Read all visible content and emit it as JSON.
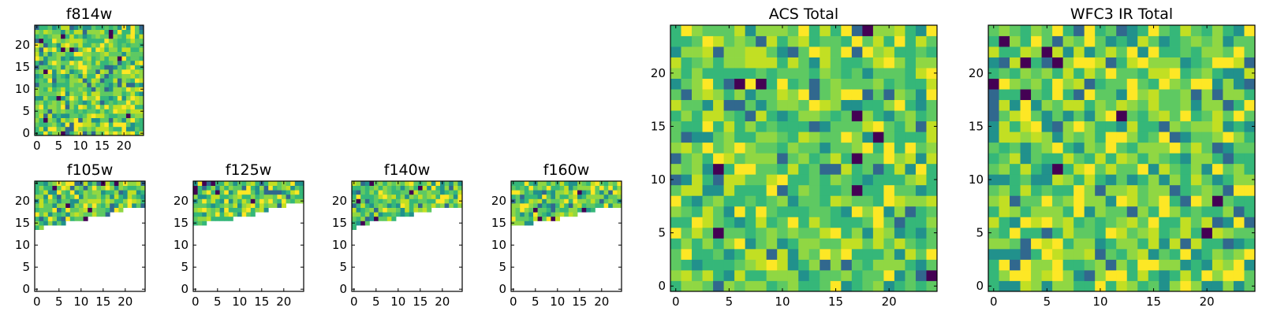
{
  "colors": {
    "colormap": "viridis",
    "cell_palette": [
      "#440154",
      "#31688e",
      "#21918c",
      "#35b779",
      "#5ec962",
      "#90d743",
      "#c2df23",
      "#fde725"
    ]
  },
  "chart_data": [
    {
      "type": "heatmap",
      "title": "f814w",
      "xlim": [
        -0.5,
        24.5
      ],
      "ylim": [
        -0.5,
        24.5
      ],
      "xticks": [
        0,
        5,
        10,
        15,
        20
      ],
      "yticks": [
        0,
        5,
        10,
        15,
        20
      ],
      "grid_size": [
        25,
        25
      ],
      "coverage_top_rows": 25,
      "seed": 11,
      "dark_count": 12
    },
    {
      "type": "heatmap",
      "title": "f105w",
      "xlim": [
        -0.5,
        24.5
      ],
      "ylim": [
        -0.5,
        24.5
      ],
      "xticks": [
        0,
        5,
        10,
        15,
        20
      ],
      "yticks": [
        0,
        5,
        10,
        15,
        20,
        24
      ],
      "ytick_labels": [
        "0",
        "5",
        "10",
        "15",
        "20"
      ],
      "grid_size": [
        25,
        25
      ],
      "coverage_row_min_by_column": [
        14,
        14,
        15,
        15,
        15,
        15,
        15,
        16,
        16,
        16,
        16,
        16,
        17,
        17,
        17,
        17,
        17,
        18,
        18,
        18,
        19,
        19,
        19,
        19,
        19
      ],
      "seed": 23,
      "dark_count": 6
    },
    {
      "type": "heatmap",
      "title": "f125w",
      "xlim": [
        -0.5,
        24.5
      ],
      "ylim": [
        -0.5,
        24.5
      ],
      "xticks": [
        0,
        5,
        10,
        15,
        20
      ],
      "yticks": [
        0,
        5,
        10,
        15,
        20
      ],
      "grid_size": [
        25,
        25
      ],
      "coverage_row_min_by_column": [
        15,
        15,
        15,
        16,
        16,
        16,
        16,
        16,
        16,
        17,
        17,
        17,
        17,
        17,
        18,
        18,
        18,
        19,
        19,
        19,
        19,
        20,
        20,
        20,
        20
      ],
      "seed": 37,
      "dark_count": 6
    },
    {
      "type": "heatmap",
      "title": "f140w",
      "xlim": [
        -0.5,
        24.5
      ],
      "ylim": [
        -0.5,
        24.5
      ],
      "xticks": [
        0,
        5,
        10,
        15,
        20
      ],
      "yticks": [
        0,
        5,
        10,
        15,
        20
      ],
      "grid_size": [
        25,
        25
      ],
      "coverage_row_min_by_column": [
        14,
        15,
        15,
        15,
        16,
        16,
        16,
        16,
        16,
        16,
        17,
        17,
        17,
        17,
        18,
        18,
        18,
        18,
        19,
        19,
        19,
        19,
        19,
        19,
        19
      ],
      "seed": 53,
      "dark_count": 6
    },
    {
      "type": "heatmap",
      "title": "f160w",
      "xlim": [
        -0.5,
        24.5
      ],
      "ylim": [
        -0.5,
        24.5
      ],
      "xticks": [
        0,
        5,
        10,
        15,
        20
      ],
      "yticks": [
        0,
        5,
        10,
        15,
        20
      ],
      "grid_size": [
        25,
        25
      ],
      "coverage_row_min_by_column": [
        15,
        15,
        15,
        15,
        15,
        16,
        16,
        16,
        16,
        16,
        16,
        17,
        17,
        17,
        17,
        18,
        18,
        18,
        18,
        19,
        19,
        19,
        19,
        19,
        19
      ],
      "seed": 71,
      "dark_count": 5
    },
    {
      "type": "heatmap",
      "title": "ACS Total",
      "xlim": [
        -0.5,
        24.5
      ],
      "ylim": [
        -0.5,
        24.5
      ],
      "xticks": [
        0,
        5,
        10,
        15,
        20
      ],
      "yticks": [
        0,
        5,
        10,
        15,
        20
      ],
      "grid_size": [
        25,
        25
      ],
      "coverage_top_rows": 25,
      "seed": 89,
      "dark_count": 10
    },
    {
      "type": "heatmap",
      "title": "WFC3 IR Total",
      "xlim": [
        -0.5,
        24.5
      ],
      "ylim": [
        -0.5,
        24.5
      ],
      "xticks": [
        0,
        5,
        10,
        15,
        20
      ],
      "yticks": [
        0,
        5,
        10,
        15,
        20
      ],
      "grid_size": [
        25,
        25
      ],
      "coverage_top_rows": 25,
      "seed": 97,
      "dark_count": 11
    }
  ]
}
